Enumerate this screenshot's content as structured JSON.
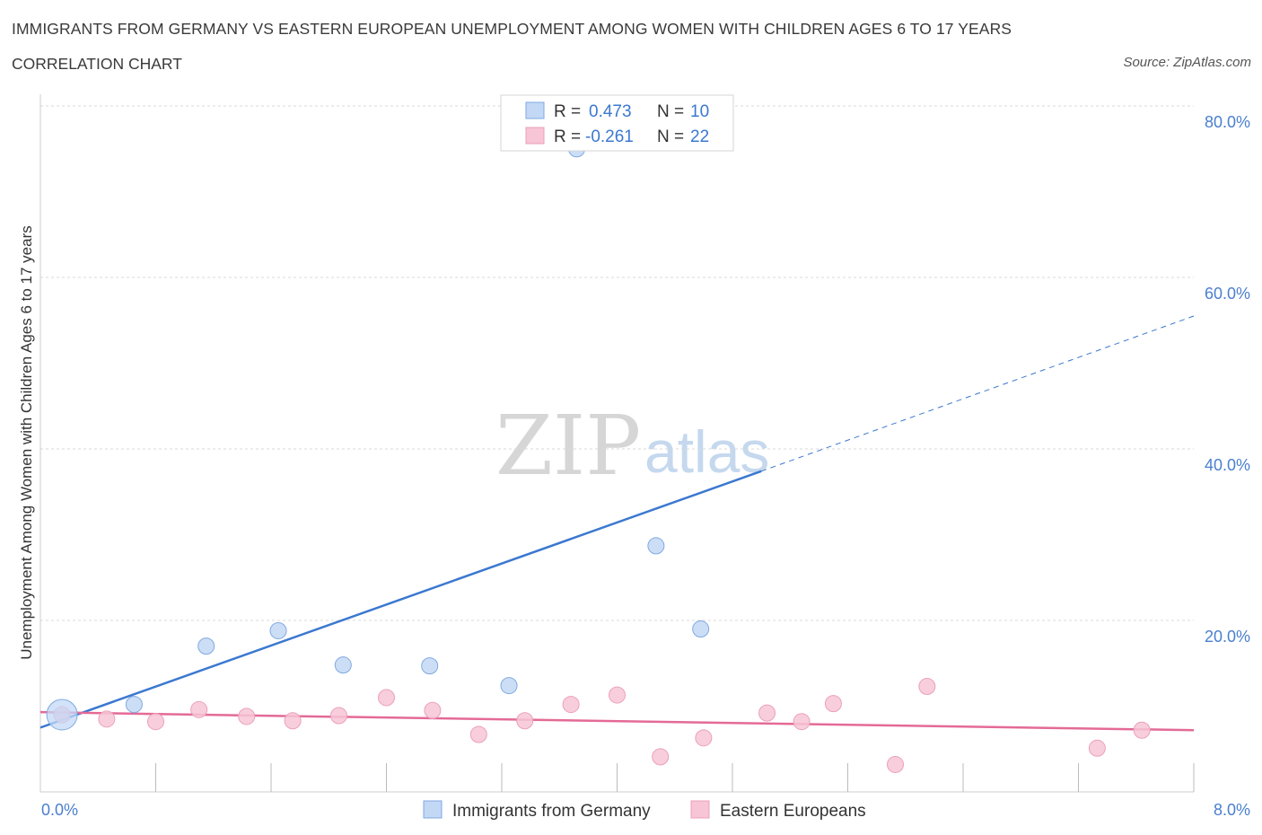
{
  "header": {
    "title": "IMMIGRANTS FROM GERMANY VS EASTERN EUROPEAN UNEMPLOYMENT AMONG WOMEN WITH CHILDREN AGES 6 TO 17 YEARS",
    "subtitle": "CORRELATION CHART",
    "source": "Source: ZipAtlas.com"
  },
  "watermark": {
    "zip": "ZIP",
    "atlas": "atlas"
  },
  "colors": {
    "blue": "#3b78d0",
    "blue_fill": "#c3d8f5",
    "pink": "#e46a96",
    "pink_fill": "#f7c5d6",
    "grid": "#d9d9d9",
    "tick_text": "#4a7fcf"
  },
  "legend": {
    "r_label": "R =",
    "n_label": "N =",
    "series": [
      {
        "r": "0.473",
        "n": "10"
      },
      {
        "r": "-0.261",
        "n": "22"
      }
    ]
  },
  "chart_data": {
    "type": "scatter",
    "title": "IMMIGRANTS FROM GERMANY VS EASTERN EUROPEAN UNEMPLOYMENT AMONG WOMEN WITH CHILDREN AGES 6 TO 17 YEARS",
    "xlabel": "",
    "ylabel": "Unemployment Among Women with Children Ages 6 to 17 years",
    "xlim": [
      0,
      8
    ],
    "ylim": [
      0,
      80
    ],
    "x_tick_labels": [
      "0.0%",
      "8.0%"
    ],
    "y_ticks": [
      {
        "value": 20,
        "label": "20.0%"
      },
      {
        "value": 40,
        "label": "40.0%"
      },
      {
        "value": 60,
        "label": "60.0%"
      },
      {
        "value": 80,
        "label": "80.0%"
      }
    ],
    "grid": true,
    "legend_position": "top-center",
    "series": [
      {
        "name": "Immigrants from Germany",
        "color": "#3b78d0",
        "points": [
          {
            "x": 0.15,
            "y": 9.0,
            "big": true
          },
          {
            "x": 0.65,
            "y": 10.2
          },
          {
            "x": 1.15,
            "y": 17.0
          },
          {
            "x": 1.65,
            "y": 18.8
          },
          {
            "x": 2.1,
            "y": 14.8
          },
          {
            "x": 2.7,
            "y": 14.7
          },
          {
            "x": 3.25,
            "y": 12.4
          },
          {
            "x": 3.72,
            "y": 75.0
          },
          {
            "x": 4.27,
            "y": 28.7
          },
          {
            "x": 4.58,
            "y": 19.0
          }
        ],
        "trend": {
          "x0": 0.0,
          "y0": 7.5,
          "x1": 5.0,
          "y1": 37.4,
          "x_dash_end": 8.0,
          "y_dash_end": 55.5
        }
      },
      {
        "name": "Eastern Europeans",
        "color": "#e46a96",
        "points": [
          {
            "x": 0.15,
            "y": 9.0
          },
          {
            "x": 0.46,
            "y": 8.5
          },
          {
            "x": 0.8,
            "y": 8.2
          },
          {
            "x": 1.1,
            "y": 9.6
          },
          {
            "x": 1.43,
            "y": 8.8
          },
          {
            "x": 1.75,
            "y": 8.3
          },
          {
            "x": 2.07,
            "y": 8.9
          },
          {
            "x": 2.4,
            "y": 11.0
          },
          {
            "x": 2.72,
            "y": 9.5
          },
          {
            "x": 3.04,
            "y": 6.7
          },
          {
            "x": 3.36,
            "y": 8.3
          },
          {
            "x": 3.68,
            "y": 10.2
          },
          {
            "x": 4.0,
            "y": 11.3
          },
          {
            "x": 4.3,
            "y": 4.1
          },
          {
            "x": 4.6,
            "y": 6.3
          },
          {
            "x": 5.04,
            "y": 9.2
          },
          {
            "x": 5.28,
            "y": 8.2
          },
          {
            "x": 5.5,
            "y": 10.3
          },
          {
            "x": 5.93,
            "y": 3.2
          },
          {
            "x": 6.15,
            "y": 12.3
          },
          {
            "x": 7.33,
            "y": 5.1
          },
          {
            "x": 7.64,
            "y": 7.2
          }
        ],
        "trend": {
          "x0": 0.0,
          "y0": 9.3,
          "x1": 8.0,
          "y1": 7.2
        }
      }
    ]
  }
}
